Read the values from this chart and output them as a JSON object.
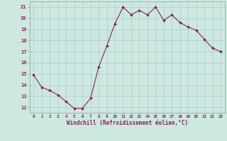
{
  "x": [
    0,
    1,
    2,
    3,
    4,
    5,
    6,
    7,
    8,
    9,
    10,
    11,
    12,
    13,
    14,
    15,
    16,
    17,
    18,
    19,
    20,
    21,
    22,
    23
  ],
  "y": [
    14.9,
    13.8,
    13.5,
    13.1,
    12.5,
    11.9,
    11.9,
    12.8,
    15.6,
    17.5,
    19.5,
    21.0,
    20.3,
    20.7,
    20.3,
    21.0,
    19.8,
    20.3,
    19.6,
    19.2,
    18.9,
    18.1,
    17.3,
    17.0
  ],
  "line_color": "#882255",
  "marker": "D",
  "marker_size": 2,
  "bg_color": "#cce8e0",
  "grid_color": "#aacccc",
  "xlabel": "Windchill (Refroidissement éolien,°C)",
  "xlabel_color": "#882255",
  "tick_color": "#882255",
  "ylim": [
    11.5,
    21.5
  ],
  "spine_color": "#aaaaaa"
}
